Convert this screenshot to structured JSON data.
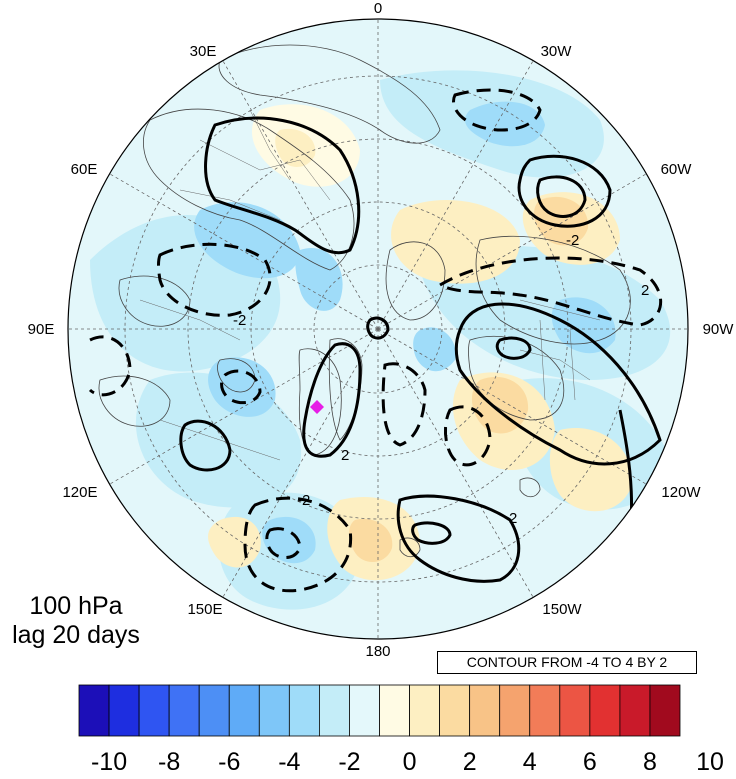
{
  "panel": {
    "level_label": "100 hPa",
    "lag_label": "lag 20 days"
  },
  "contour_info": "CONTOUR FROM -4 TO 4 BY 2",
  "longitude_labels": [
    "0",
    "30W",
    "60W",
    "90W",
    "120W",
    "150W",
    "180",
    "150E",
    "120E",
    "90E",
    "60E",
    "30E"
  ],
  "contour_line_labels": [
    "-2",
    "-2",
    "2",
    "2",
    "2",
    "-2"
  ],
  "colorbar": {
    "tick_labels": [
      "-10",
      "-8",
      "-6",
      "-4",
      "-2",
      "0",
      "2",
      "4",
      "6",
      "8",
      "10"
    ],
    "colors": [
      "#1c0fb8",
      "#1e2ee0",
      "#2f55f2",
      "#3f72f5",
      "#4d8ff5",
      "#5fabf7",
      "#7ec6f8",
      "#9fdcf9",
      "#c4edf8",
      "#e4f8fb",
      "#fffbe4",
      "#fdefc2",
      "#fbdba1",
      "#f8c387",
      "#f5a36e",
      "#f27c58",
      "#ec5544",
      "#e23131",
      "#c91a2a",
      "#a10a1e"
    ]
  },
  "marker": {
    "color": "#e61ee6"
  }
}
